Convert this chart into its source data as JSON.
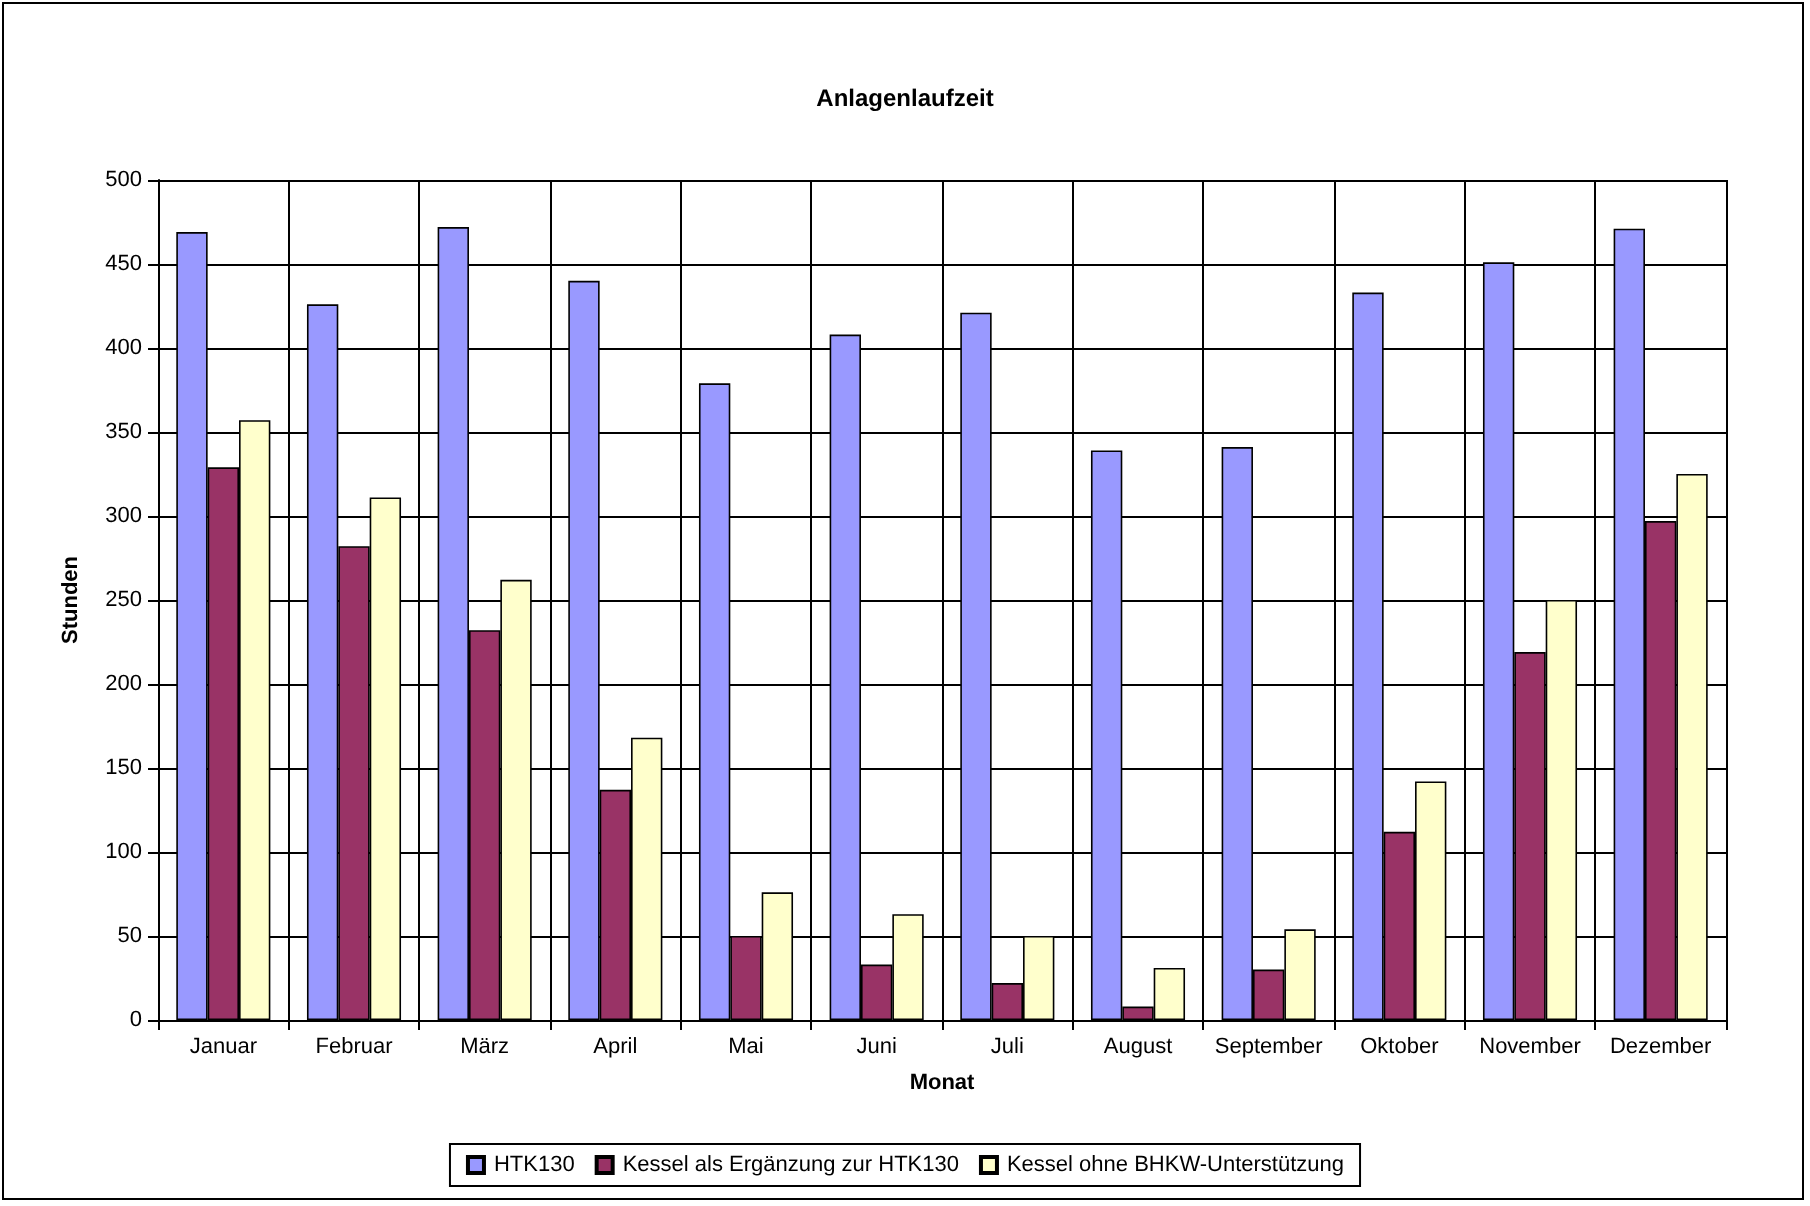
{
  "chart_data": {
    "type": "bar",
    "title": "Anlagenlaufzeit",
    "xlabel": "Monat",
    "ylabel": "Stunden",
    "categories": [
      "Januar",
      "Februar",
      "März",
      "April",
      "Mai",
      "Juni",
      "Juli",
      "August",
      "September",
      "Oktober",
      "November",
      "Dezember"
    ],
    "series": [
      {
        "name": "HTK130",
        "color": "#9999ff",
        "values": [
          469,
          426,
          472,
          440,
          379,
          408,
          421,
          339,
          341,
          433,
          451,
          471
        ]
      },
      {
        "name": "Kessel als Ergänzung zur HTK130",
        "color": "#993366",
        "values": [
          329,
          282,
          232,
          137,
          50,
          33,
          22,
          8,
          30,
          112,
          219,
          297
        ]
      },
      {
        "name": "Kessel ohne BHKW-Unterstützung",
        "color": "#ffffcc",
        "values": [
          357,
          311,
          262,
          168,
          76,
          63,
          50,
          31,
          54,
          142,
          250,
          325
        ]
      }
    ],
    "ylim": [
      0,
      500
    ],
    "yticks": [
      0,
      50,
      100,
      150,
      200,
      250,
      300,
      350,
      400,
      450,
      500
    ],
    "grid": true,
    "legend": "bottom"
  }
}
